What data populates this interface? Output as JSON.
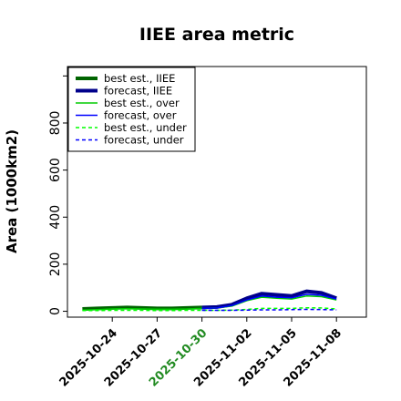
{
  "chart_data": {
    "type": "line",
    "title": "IIEE area metric",
    "ylabel": "Area (1000km2)",
    "xlabel": "",
    "x_start": "2025-10-21",
    "x_end": "2025-11-10",
    "ylim": [
      -25,
      1040
    ],
    "yticks": [
      0,
      200,
      400,
      600,
      800
    ],
    "xticks": [
      {
        "date": "2025-10-24",
        "label": "2025-10-24",
        "color": "#000000"
      },
      {
        "date": "2025-10-27",
        "label": "2025-10-27",
        "color": "#000000"
      },
      {
        "date": "2025-10-30",
        "label": "2025-10-30",
        "color": "#228B22"
      },
      {
        "date": "2025-11-02",
        "label": "2025-11-02",
        "color": "#000000"
      },
      {
        "date": "2025-11-05",
        "label": "2025-11-05",
        "color": "#000000"
      },
      {
        "date": "2025-11-08",
        "label": "2025-11-08",
        "color": "#000000"
      }
    ],
    "legend_position": "top-left",
    "series": [
      {
        "name": "best est., IIEE",
        "color": "#006400",
        "width": 4,
        "dash": "",
        "points": [
          [
            "2025-10-22",
            10
          ],
          [
            "2025-10-23",
            12
          ],
          [
            "2025-10-24",
            14
          ],
          [
            "2025-10-25",
            16
          ],
          [
            "2025-10-26",
            14
          ],
          [
            "2025-10-27",
            12
          ],
          [
            "2025-10-28",
            12
          ],
          [
            "2025-10-29",
            14
          ],
          [
            "2025-10-30",
            16
          ]
        ]
      },
      {
        "name": "forecast, IIEE",
        "color": "#00008B",
        "width": 4,
        "dash": "",
        "points": [
          [
            "2025-10-30",
            16
          ],
          [
            "2025-10-31",
            18
          ],
          [
            "2025-11-01",
            28
          ],
          [
            "2025-11-02",
            55
          ],
          [
            "2025-11-03",
            75
          ],
          [
            "2025-11-04",
            70
          ],
          [
            "2025-11-05",
            65
          ],
          [
            "2025-11-06",
            85
          ],
          [
            "2025-11-07",
            78
          ],
          [
            "2025-11-08",
            55
          ]
        ]
      },
      {
        "name": "best est., over",
        "color": "#00CC00",
        "width": 1.5,
        "dash": "",
        "points": [
          [
            "2025-10-22",
            5
          ],
          [
            "2025-10-23",
            7
          ],
          [
            "2025-10-24",
            10
          ],
          [
            "2025-10-25",
            11
          ],
          [
            "2025-10-26",
            10
          ],
          [
            "2025-10-27",
            9
          ],
          [
            "2025-10-28",
            9
          ],
          [
            "2025-10-29",
            10
          ],
          [
            "2025-10-30",
            12
          ],
          [
            "2025-10-31",
            14
          ],
          [
            "2025-11-01",
            22
          ],
          [
            "2025-11-02",
            45
          ],
          [
            "2025-11-03",
            60
          ],
          [
            "2025-11-04",
            55
          ],
          [
            "2025-11-05",
            52
          ],
          [
            "2025-11-06",
            65
          ],
          [
            "2025-11-07",
            62
          ],
          [
            "2025-11-08",
            48
          ]
        ]
      },
      {
        "name": "forecast, over",
        "color": "#0000FF",
        "width": 1.5,
        "dash": "",
        "points": [
          [
            "2025-10-30",
            12
          ],
          [
            "2025-10-31",
            14
          ],
          [
            "2025-11-01",
            24
          ],
          [
            "2025-11-02",
            48
          ],
          [
            "2025-11-03",
            65
          ],
          [
            "2025-11-04",
            60
          ],
          [
            "2025-11-05",
            57
          ],
          [
            "2025-11-06",
            72
          ],
          [
            "2025-11-07",
            68
          ],
          [
            "2025-11-08",
            52
          ]
        ]
      },
      {
        "name": "best est., under",
        "color": "#00FF00",
        "width": 1.5,
        "dash": "4,3",
        "points": [
          [
            "2025-10-22",
            3
          ],
          [
            "2025-10-23",
            3
          ],
          [
            "2025-10-24",
            4
          ],
          [
            "2025-10-25",
            4
          ],
          [
            "2025-10-26",
            4
          ],
          [
            "2025-10-27",
            3
          ],
          [
            "2025-10-28",
            3
          ],
          [
            "2025-10-29",
            4
          ],
          [
            "2025-10-30",
            4
          ],
          [
            "2025-10-31",
            4
          ],
          [
            "2025-11-01",
            5
          ],
          [
            "2025-11-02",
            8
          ],
          [
            "2025-11-03",
            12
          ],
          [
            "2025-11-04",
            12
          ],
          [
            "2025-11-05",
            12
          ],
          [
            "2025-11-06",
            15
          ],
          [
            "2025-11-07",
            14
          ],
          [
            "2025-11-08",
            10
          ]
        ]
      },
      {
        "name": "forecast, under",
        "color": "#0000FF",
        "width": 1.5,
        "dash": "4,3",
        "points": [
          [
            "2025-10-30",
            4
          ],
          [
            "2025-10-31",
            4
          ],
          [
            "2025-11-01",
            4
          ],
          [
            "2025-11-02",
            5
          ],
          [
            "2025-11-03",
            6
          ],
          [
            "2025-11-04",
            6
          ],
          [
            "2025-11-05",
            7
          ],
          [
            "2025-11-06",
            8
          ],
          [
            "2025-11-07",
            7
          ],
          [
            "2025-11-08",
            6
          ]
        ]
      }
    ]
  }
}
